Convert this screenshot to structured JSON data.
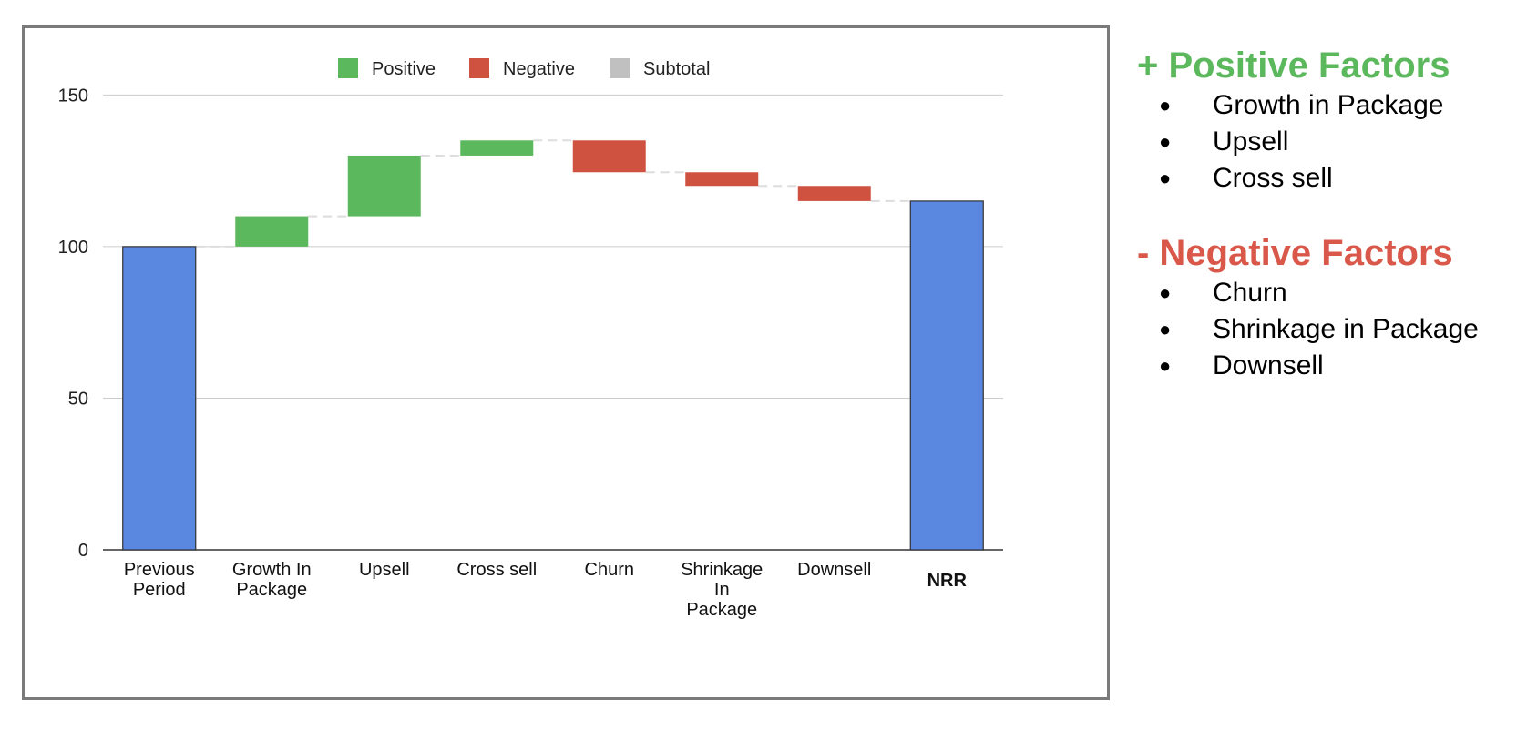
{
  "chart_data": {
    "type": "waterfall",
    "legend": {
      "position": "top",
      "items": [
        {
          "name": "Positive",
          "color": "#5cb85c"
        },
        {
          "name": "Negative",
          "color": "#cf5240"
        },
        {
          "name": "Subtotal",
          "color": "#c0c0c0"
        }
      ]
    },
    "categories": [
      [
        "Previous",
        "Period"
      ],
      [
        "Growth In",
        "Package"
      ],
      [
        "Upsell"
      ],
      [
        "Cross sell"
      ],
      [
        "Churn"
      ],
      [
        "Shrinkage",
        "In",
        "Package"
      ],
      [
        "Downsell"
      ],
      [
        "NRR"
      ]
    ],
    "steps": [
      {
        "kind": "total",
        "value": 100
      },
      {
        "kind": "positive",
        "value": 10
      },
      {
        "kind": "positive",
        "value": 20
      },
      {
        "kind": "positive",
        "value": 5
      },
      {
        "kind": "negative",
        "value": -10.5
      },
      {
        "kind": "negative",
        "value": -4.5
      },
      {
        "kind": "negative",
        "value": -5
      },
      {
        "kind": "total",
        "value": 115
      }
    ],
    "ylim": [
      0,
      160
    ],
    "yticks": [
      0,
      50,
      100,
      150
    ],
    "grid": true,
    "total_color": "#5a87e0",
    "bold_category_index": 7
  },
  "factors": {
    "positive": {
      "title": "+ Positive Factors",
      "color": "#5cb85c",
      "items": [
        "Growth in Package",
        "Upsell",
        "Cross sell"
      ]
    },
    "negative": {
      "title": "- Negative Factors",
      "color": "#d9584a",
      "items": [
        "Churn",
        "Shrinkage in Package",
        "Downsell"
      ]
    },
    "bullet": "●"
  }
}
